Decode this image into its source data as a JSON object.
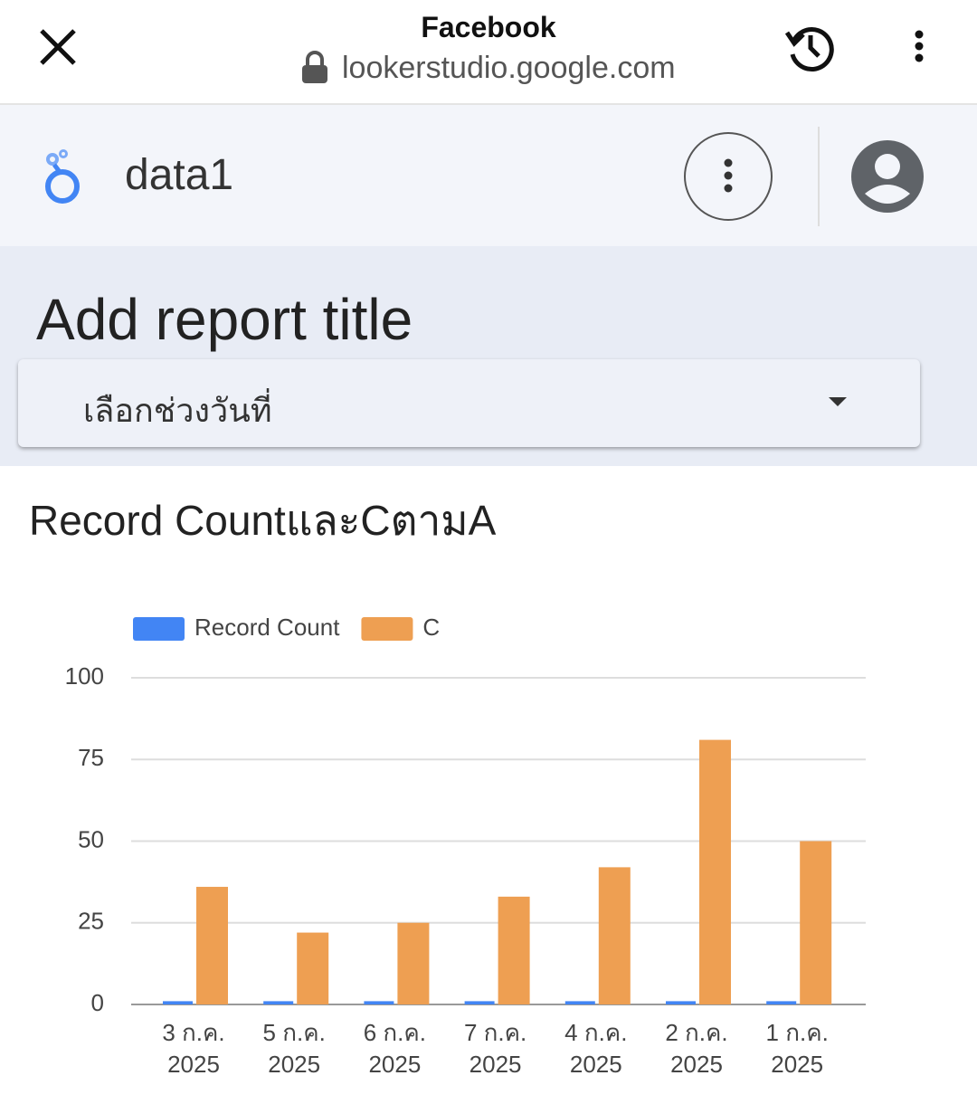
{
  "browser": {
    "title": "Facebook",
    "url": "lookerstudio.google.com"
  },
  "app": {
    "report_name": "data1"
  },
  "report": {
    "title": "Add report title",
    "date_picker": "เลือกช่วงวันที่"
  },
  "chart_data": {
    "type": "bar",
    "title": "Record CountและCตามA",
    "categories": [
      "3 ก.ค. 2025",
      "5 ก.ค. 2025",
      "6 ก.ค. 2025",
      "7 ก.ค. 2025",
      "4 ก.ค. 2025",
      "2 ก.ค. 2025",
      "1 ก.ค. 2025"
    ],
    "series": [
      {
        "name": "Record Count",
        "color": "#4285f4",
        "values": [
          1,
          1,
          1,
          1,
          1,
          1,
          1
        ]
      },
      {
        "name": "C",
        "color": "#ee9f52",
        "values": [
          36,
          22,
          25,
          33,
          42,
          81,
          50
        ]
      }
    ],
    "ylim": [
      0,
      100
    ],
    "yticks": [
      0,
      25,
      50,
      75,
      100
    ],
    "grid": true,
    "legend": "top"
  }
}
